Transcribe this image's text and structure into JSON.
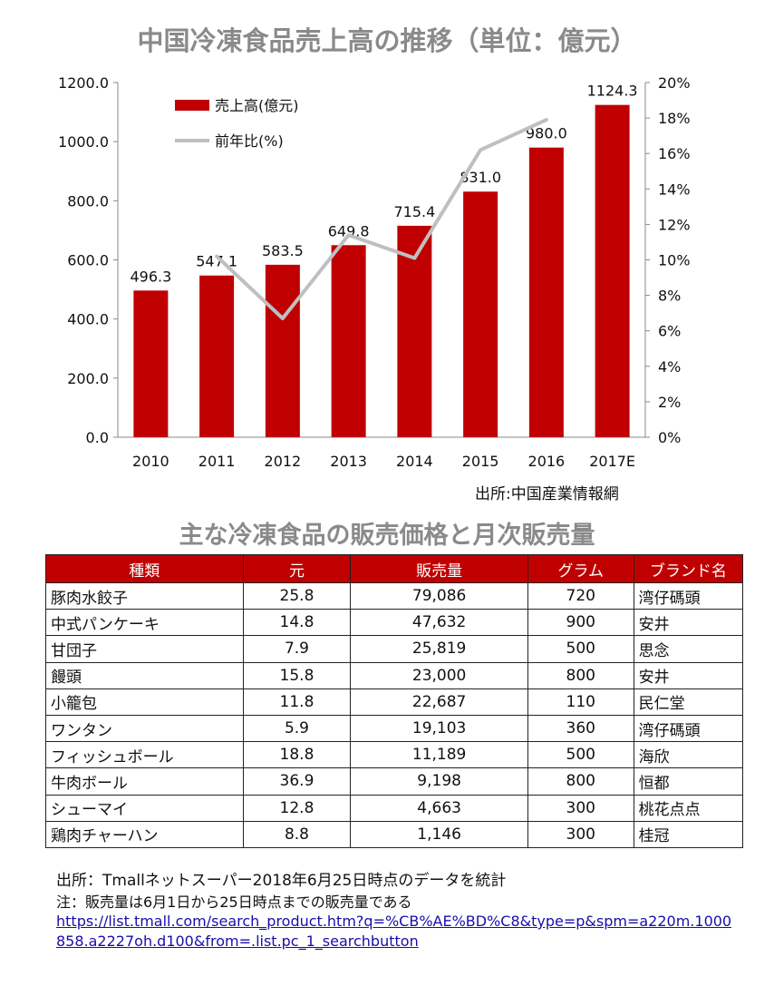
{
  "chart_title": "中国冷凍食品売上高の推移（単位：億元）",
  "chart_source": "出所:中国産業情報網",
  "chart_data": {
    "type": "bar",
    "categories": [
      "2010",
      "2011",
      "2012",
      "2013",
      "2014",
      "2015",
      "2016",
      "2017E"
    ],
    "series": [
      {
        "name": "売上高(億元)",
        "type": "bar",
        "values": [
          496.3,
          547.1,
          583.5,
          649.8,
          715.4,
          831.0,
          980.0,
          1124.3
        ],
        "color": "#c00000"
      },
      {
        "name": "前年比(%)",
        "type": "line",
        "axis": "right",
        "values": [
          null,
          10.2,
          6.7,
          11.4,
          10.1,
          16.2,
          17.9,
          null
        ],
        "color": "#bfbfbf"
      }
    ],
    "data_labels": [
      "496.3",
      "547.1",
      "583.5",
      "649.8",
      "715.4",
      "831.0",
      "980.0",
      "1124.3"
    ],
    "y_left_ticks": [
      "0.0",
      "200.0",
      "400.0",
      "600.0",
      "800.0",
      "1000.0",
      "1200.0"
    ],
    "y_right_ticks": [
      "0%",
      "2%",
      "4%",
      "6%",
      "8%",
      "10%",
      "12%",
      "14%",
      "16%",
      "18%",
      "20%"
    ],
    "ylim": [
      0,
      1200
    ],
    "ylim_right": [
      0,
      20
    ],
    "legend_position": "top-left"
  },
  "table_title": "主な冷凍食品の販売価格と月次販売量",
  "table": {
    "headers": [
      "種類",
      "元",
      "販売量",
      "グラム",
      "ブランド名"
    ],
    "rows": [
      [
        "豚肉水餃子",
        "25.8",
        "79,086",
        "720",
        "湾仔碼頭"
      ],
      [
        "中式パンケーキ",
        "14.8",
        "47,632",
        "900",
        "安井"
      ],
      [
        "甘団子",
        "7.9",
        "25,819",
        "500",
        "思念"
      ],
      [
        "饅頭",
        "15.8",
        "23,000",
        "800",
        "安井"
      ],
      [
        "小籠包",
        "11.8",
        "22,687",
        "110",
        "民仁堂"
      ],
      [
        "ワンタン",
        "5.9",
        "19,103",
        "360",
        "湾仔碼頭"
      ],
      [
        "フィッシュボール",
        "18.8",
        "11,189",
        "500",
        "海欣"
      ],
      [
        "牛肉ボール",
        "36.9",
        "9,198",
        "800",
        "恒都"
      ],
      [
        "シューマイ",
        "12.8",
        "4,663",
        "300",
        "桃花点点"
      ],
      [
        "鶏肉チャーハン",
        "8.8",
        "1,146",
        "300",
        "桂冠"
      ]
    ]
  },
  "notes": {
    "source": "出所：Tmallネットスーパー2018年6月25日時点のデータを統計",
    "note": "注：販売量は6月1日から25日時点までの販売量である",
    "link": "https://list.tmall.com/search_product.htm?q=%CB%AE%BD%C8&type=p&spm=a220m.1000858.a2227oh.d100&from=.list.pc_1_searchbutton"
  },
  "colors": {
    "bar": "#c00000",
    "line": "#bfbfbf",
    "title": "#8a8a8a",
    "header_bg": "#c00000"
  }
}
